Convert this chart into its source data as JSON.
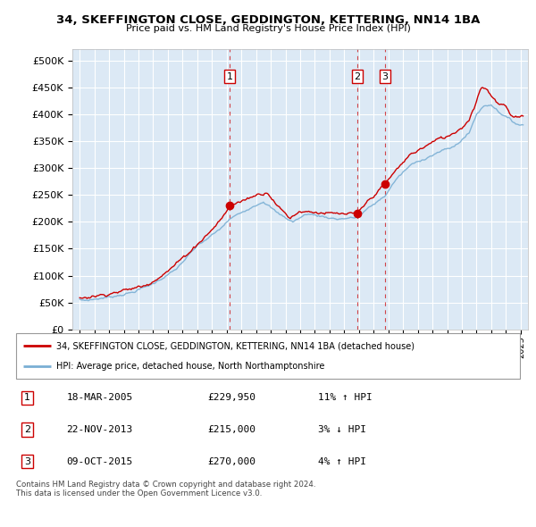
{
  "title_line1": "34, SKEFFINGTON CLOSE, GEDDINGTON, KETTERING, NN14 1BA",
  "title_line2": "Price paid vs. HM Land Registry's House Price Index (HPI)",
  "property_label": "34, SKEFFINGTON CLOSE, GEDDINGTON, KETTERING, NN14 1BA (detached house)",
  "hpi_label": "HPI: Average price, detached house, North Northamptonshire",
  "transactions": [
    {
      "num": 1,
      "date": "18-MAR-2005",
      "price": 229950,
      "pct": "11%",
      "dir": "↑",
      "year": 2005.21
    },
    {
      "num": 2,
      "date": "22-NOV-2013",
      "price": 215000,
      "pct": "3%",
      "dir": "↓",
      "year": 2013.89
    },
    {
      "num": 3,
      "date": "09-OCT-2015",
      "price": 270000,
      "pct": "4%",
      "dir": "↑",
      "year": 2015.77
    }
  ],
  "footer": "Contains HM Land Registry data © Crown copyright and database right 2024.\nThis data is licensed under the Open Government Licence v3.0.",
  "bg_color": "#dce9f5",
  "red_color": "#cc0000",
  "blue_color": "#7aafd4",
  "grid_color": "#ffffff",
  "ylim": [
    0,
    520000
  ],
  "yticks": [
    0,
    50000,
    100000,
    150000,
    200000,
    250000,
    300000,
    350000,
    400000,
    450000,
    500000
  ],
  "xlim_start": 1994.5,
  "xlim_end": 2025.5
}
